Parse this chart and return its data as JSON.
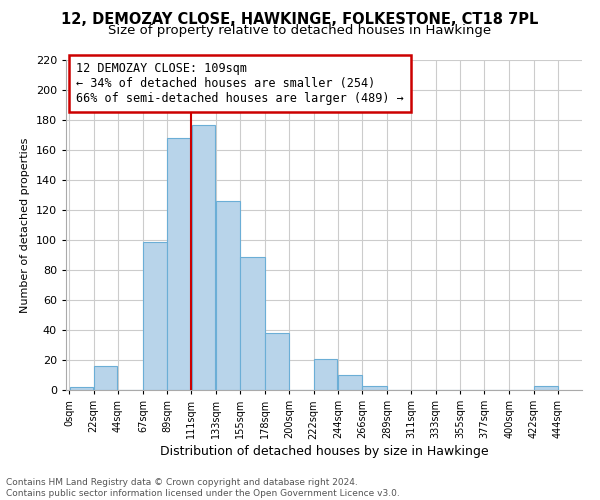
{
  "title": "12, DEMOZAY CLOSE, HAWKINGE, FOLKESTONE, CT18 7PL",
  "subtitle": "Size of property relative to detached houses in Hawkinge",
  "xlabel": "Distribution of detached houses by size in Hawkinge",
  "ylabel": "Number of detached properties",
  "footnote1": "Contains HM Land Registry data © Crown copyright and database right 2024.",
  "footnote2": "Contains public sector information licensed under the Open Government Licence v3.0.",
  "bar_left_edges": [
    0,
    22,
    44,
    67,
    89,
    111,
    133,
    155,
    178,
    200,
    222,
    244,
    266,
    289,
    311,
    333,
    355,
    377,
    400,
    422
  ],
  "bar_heights": [
    2,
    16,
    0,
    99,
    168,
    177,
    126,
    89,
    38,
    0,
    21,
    10,
    3,
    0,
    0,
    0,
    0,
    0,
    0,
    3
  ],
  "bar_widths": [
    22,
    22,
    23,
    22,
    22,
    22,
    22,
    23,
    22,
    22,
    22,
    22,
    23,
    22,
    22,
    22,
    22,
    23,
    22,
    22
  ],
  "bar_color": "#b8d4ea",
  "bar_edgecolor": "#6baed6",
  "marker_x": 111,
  "marker_color": "#cc0000",
  "ylim": [
    0,
    220
  ],
  "yticks": [
    0,
    20,
    40,
    60,
    80,
    100,
    120,
    140,
    160,
    180,
    200,
    220
  ],
  "xtick_labels": [
    "0sqm",
    "22sqm",
    "44sqm",
    "67sqm",
    "89sqm",
    "111sqm",
    "133sqm",
    "155sqm",
    "178sqm",
    "200sqm",
    "222sqm",
    "244sqm",
    "266sqm",
    "289sqm",
    "311sqm",
    "333sqm",
    "355sqm",
    "377sqm",
    "400sqm",
    "422sqm",
    "444sqm"
  ],
  "xtick_positions": [
    0,
    22,
    44,
    67,
    89,
    111,
    133,
    155,
    178,
    200,
    222,
    244,
    266,
    289,
    311,
    333,
    355,
    377,
    400,
    422,
    444
  ],
  "annotation_title": "12 DEMOZAY CLOSE: 109sqm",
  "annotation_line1": "← 34% of detached houses are smaller (254)",
  "annotation_line2": "66% of semi-detached houses are larger (489) →",
  "grid_color": "#cccccc",
  "background_color": "#ffffff",
  "title_fontsize": 10.5,
  "subtitle_fontsize": 9.5,
  "annotation_fontsize": 8.5,
  "ylabel_fontsize": 8,
  "xlabel_fontsize": 9,
  "footnote_fontsize": 6.5
}
